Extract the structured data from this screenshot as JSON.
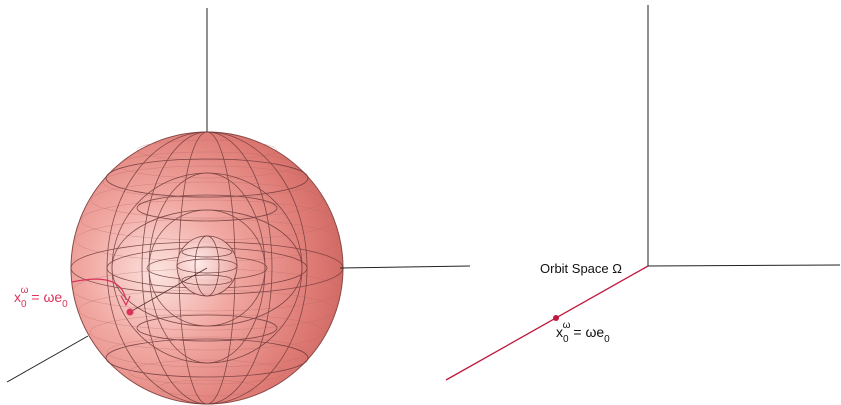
{
  "left_panel": {
    "point_label": {
      "x": "x",
      "sub": "0",
      "sup": "ω",
      "rhs": "= ωe",
      "rhs_sub": "0"
    },
    "colors": {
      "sphere_fill": "#e07b76",
      "sphere_highlight": "#fbe3df",
      "grid_line": "#7a3d3d",
      "axis": "#222222",
      "accent": "#d9345a"
    }
  },
  "right_panel": {
    "space_label": "Orbit Space Ω",
    "point_label": {
      "x": "x",
      "sub": "0",
      "sup": "ω",
      "rhs": "= ωe",
      "rhs_sub": "0"
    },
    "colors": {
      "axis": "#222222",
      "accent": "#c0183e"
    }
  }
}
